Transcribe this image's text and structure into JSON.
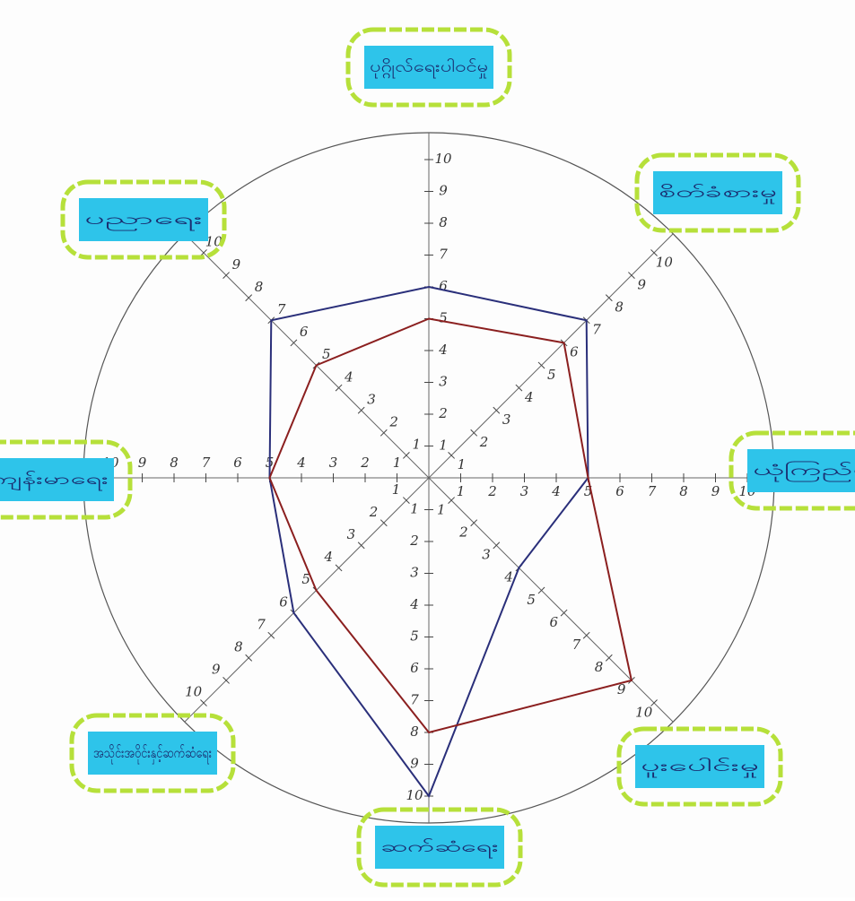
{
  "chart_data": {
    "type": "radar",
    "categories": [
      "ပုဂ္ဂိုလ်ရေးပါဝင်မှု",
      "စိတ်ခံစားမှု",
      "ယုံကြည်မှု",
      "ပူးပေါင်းမှု",
      "ဆက်ဆံရေး",
      "အသိုင်းအဝိုင်းနှင့်ဆက်ဆံရေး",
      "ကျန်းမာရေး",
      "ပညာရေး"
    ],
    "series": [
      {
        "color": "#2a2f7a",
        "values": [
          6,
          7,
          5,
          4,
          10,
          6,
          5,
          7
        ]
      },
      {
        "color": "#8b1f1f",
        "values": [
          5,
          6,
          5,
          9,
          8,
          5,
          5,
          5
        ]
      }
    ],
    "rlim": [
      0,
      10
    ],
    "rticks": [
      1,
      2,
      3,
      4,
      5,
      6,
      7,
      8,
      9,
      10
    ]
  }
}
